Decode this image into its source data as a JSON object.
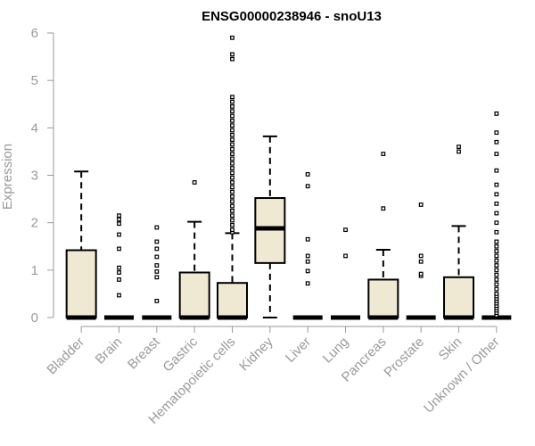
{
  "chart_data": {
    "type": "box",
    "title": "ENSG00000238946 - snoU13",
    "ylabel": "Expression",
    "xlabel": "",
    "ylim": [
      0,
      6
    ],
    "yticks": [
      0,
      1,
      2,
      3,
      4,
      5,
      6
    ],
    "grid": false,
    "legend": "none",
    "colors": {
      "box_fill": "#efe8d2",
      "box_border": "#000000",
      "axis": "#9a9a9a",
      "tick_text": "#9a9a9a",
      "title": "#000000"
    },
    "categories": [
      "Bladder",
      "Brain",
      "Breast",
      "Gastric",
      "Hematopoietic cells",
      "Kidney",
      "Liver",
      "Lung",
      "Pancreas",
      "Prostate",
      "Skin",
      "Unknown / Other"
    ],
    "boxes": [
      {
        "category": "Bladder",
        "lower_whisker": 0,
        "q1": 0,
        "median": 0,
        "q3": 1.42,
        "upper_whisker": 3.08,
        "outliers": []
      },
      {
        "category": "Brain",
        "lower_whisker": 0,
        "q1": 0,
        "median": 0,
        "q3": 0,
        "upper_whisker": 0,
        "outliers": [
          0.47,
          0.8,
          0.95,
          1.05,
          1.45,
          1.75,
          1.98,
          2.07,
          2.15
        ]
      },
      {
        "category": "Breast",
        "lower_whisker": 0,
        "q1": 0,
        "median": 0,
        "q3": 0,
        "upper_whisker": 0,
        "outliers": [
          0.35,
          0.85,
          0.97,
          1.1,
          1.28,
          1.45,
          1.6,
          1.9
        ]
      },
      {
        "category": "Gastric",
        "lower_whisker": 0,
        "q1": 0,
        "median": 0,
        "q3": 0.95,
        "upper_whisker": 2.02,
        "outliers": [
          2.85
        ]
      },
      {
        "category": "Hematopoietic cells",
        "lower_whisker": 0,
        "q1": 0,
        "median": 0,
        "q3": 0.73,
        "upper_whisker": 1.78,
        "outliers": [
          1.8,
          1.85,
          1.95,
          2.05,
          2.15,
          2.25,
          2.35,
          2.45,
          2.55,
          2.65,
          2.75,
          2.85,
          2.95,
          3.05,
          3.15,
          3.25,
          3.35,
          3.45,
          3.55,
          3.65,
          3.75,
          3.85,
          3.95,
          4.05,
          4.15,
          4.25,
          4.35,
          4.45,
          4.55,
          4.65,
          5.45,
          5.55,
          5.9
        ]
      },
      {
        "category": "Kidney",
        "lower_whisker": 0,
        "q1": 1.15,
        "median": 1.88,
        "q3": 2.52,
        "upper_whisker": 3.82,
        "outliers": []
      },
      {
        "category": "Liver",
        "lower_whisker": 0,
        "q1": 0,
        "median": 0,
        "q3": 0,
        "upper_whisker": 0,
        "outliers": [
          0.72,
          0.98,
          1.18,
          1.3,
          1.65,
          2.77,
          3.02
        ]
      },
      {
        "category": "Lung",
        "lower_whisker": 0,
        "q1": 0,
        "median": 0,
        "q3": 0,
        "upper_whisker": 0,
        "outliers": [
          1.3,
          1.85
        ]
      },
      {
        "category": "Pancreas",
        "lower_whisker": 0,
        "q1": 0,
        "median": 0,
        "q3": 0.8,
        "upper_whisker": 1.43,
        "outliers": [
          2.3,
          3.45
        ]
      },
      {
        "category": "Prostate",
        "lower_whisker": 0,
        "q1": 0,
        "median": 0,
        "q3": 0,
        "upper_whisker": 0,
        "outliers": [
          0.88,
          0.92,
          1.18,
          1.3,
          2.38
        ]
      },
      {
        "category": "Skin",
        "lower_whisker": 0,
        "q1": 0,
        "median": 0,
        "q3": 0.85,
        "upper_whisker": 1.93,
        "outliers": [
          3.5,
          3.6
        ]
      },
      {
        "category": "Unknown / Other",
        "lower_whisker": 0,
        "q1": 0,
        "median": 0,
        "q3": 0,
        "upper_whisker": 0,
        "outliers": [
          0.05,
          0.1,
          0.15,
          0.2,
          0.25,
          0.3,
          0.35,
          0.4,
          0.45,
          0.5,
          0.6,
          0.7,
          0.8,
          0.9,
          1.0,
          1.1,
          1.2,
          1.3,
          1.4,
          1.5,
          1.6,
          1.8,
          2.0,
          2.2,
          2.4,
          2.6,
          2.8,
          3.1,
          3.45,
          3.7,
          3.9,
          4.3
        ]
      }
    ]
  }
}
